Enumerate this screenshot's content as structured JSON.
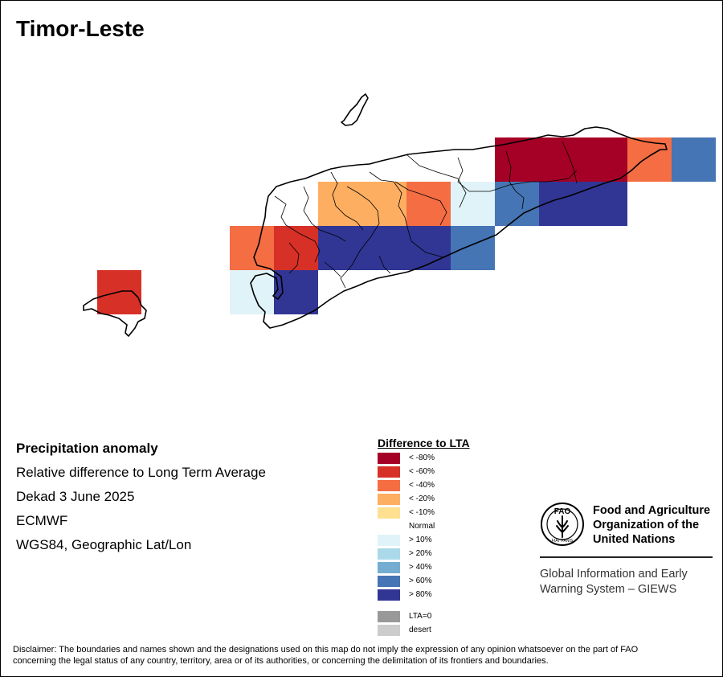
{
  "title": "Timor-Leste",
  "map_info": {
    "variable": "Precipitation anomaly",
    "description": "Relative difference to Long Term Average",
    "period": "Dekad 3 June 2025",
    "source": "ECMWF",
    "projection": "WGS84, Geographic Lat/Lon"
  },
  "legend": {
    "title": "Difference to LTA",
    "classes": [
      {
        "label": "< -80%",
        "color": "#a50026"
      },
      {
        "label": "< -60%",
        "color": "#d73027"
      },
      {
        "label": "< -40%",
        "color": "#f46d43"
      },
      {
        "label": "< -20%",
        "color": "#fdae61"
      },
      {
        "label": "< -10%",
        "color": "#fee090"
      },
      {
        "label": "Normal",
        "color": "#ffffff"
      },
      {
        "label": "> 10%",
        "color": "#e0f3f8"
      },
      {
        "label": "> 20%",
        "color": "#abd9e9"
      },
      {
        "label": "> 40%",
        "color": "#74add1"
      },
      {
        "label": "> 60%",
        "color": "#4575b4"
      },
      {
        "label": "> 80%",
        "color": "#313695"
      },
      {
        "label": "LTA=0",
        "color": "#999999"
      },
      {
        "label": "desert",
        "color": "#cccccc"
      }
    ]
  },
  "grid_cells": [
    {
      "col": 7,
      "row": 0,
      "class": "< -80%"
    },
    {
      "col": 8,
      "row": 0,
      "class": "< -80%"
    },
    {
      "col": 9,
      "row": 0,
      "class": "< -80%"
    },
    {
      "col": 10,
      "row": 0,
      "class": "< -40%"
    },
    {
      "col": 11,
      "row": 0,
      "class": "> 60%"
    },
    {
      "col": 3,
      "row": 1,
      "class": "< -20%"
    },
    {
      "col": 4,
      "row": 1,
      "class": "< -20%"
    },
    {
      "col": 5,
      "row": 1,
      "class": "< -40%"
    },
    {
      "col": 6,
      "row": 1,
      "class": "> 10%"
    },
    {
      "col": 7,
      "row": 1,
      "class": "> 60%"
    },
    {
      "col": 8,
      "row": 1,
      "class": "> 80%"
    },
    {
      "col": 9,
      "row": 1,
      "class": "> 80%"
    },
    {
      "col": 1,
      "row": 2,
      "class": "< -40%"
    },
    {
      "col": 2,
      "row": 2,
      "class": "< -60%"
    },
    {
      "col": 3,
      "row": 2,
      "class": "> 80%"
    },
    {
      "col": 4,
      "row": 2,
      "class": "> 80%"
    },
    {
      "col": 5,
      "row": 2,
      "class": "> 80%"
    },
    {
      "col": 6,
      "row": 2,
      "class": "> 60%"
    },
    {
      "col": -2,
      "row": 3,
      "class": "< -60%"
    },
    {
      "col": 1,
      "row": 3,
      "class": "> 10%"
    },
    {
      "col": 2,
      "row": 3,
      "class": "> 80%"
    }
  ],
  "organization": {
    "logo_text_top": "FAO",
    "logo_text_bottom": "FIAT PANIS",
    "name_line1": "Food and Agriculture",
    "name_line2": "Organization of the",
    "name_line3": "United Nations",
    "system_line1": "Global Information and Early",
    "system_line2": "Warning System – GIEWS"
  },
  "disclaimer_line1": "Disclaimer: The boundaries and names shown and the designations used on this map do not imply the expression of any opinion whatsoever on the part of FAO",
  "disclaimer_line2": "concerning the legal status of any country, territory, area or of its authorities, or concerning the delimitation of its frontiers and boundaries."
}
